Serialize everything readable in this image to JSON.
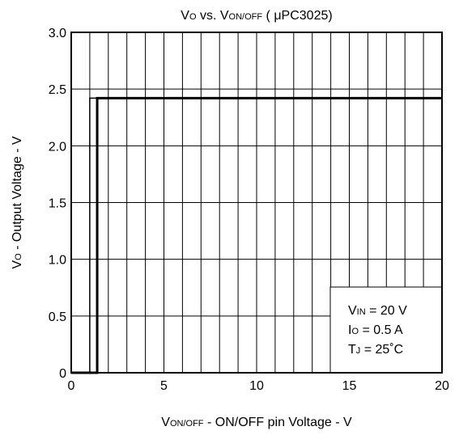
{
  "chart_data": {
    "type": "line",
    "title": [
      {
        "text": "V"
      },
      {
        "text": "O",
        "sub": true
      },
      {
        "text": " vs. V"
      },
      {
        "text": "ON/OFF",
        "sub": true
      },
      {
        "text": " ( μPC3025)"
      }
    ],
    "x_label": [
      {
        "text": "V"
      },
      {
        "text": "ON/OFF",
        "sub": true
      },
      {
        "text": " - ON/OFF pin Voltage - V"
      }
    ],
    "y_label": [
      {
        "text": "V"
      },
      {
        "text": "O",
        "sub": true
      },
      {
        "text": " - Output Voltage - V"
      }
    ],
    "annotation": [
      [
        {
          "text": "V"
        },
        {
          "text": "IN",
          "sub": true
        },
        {
          "text": " = 20 V"
        }
      ],
      [
        {
          "text": "I"
        },
        {
          "text": "O",
          "sub": true
        },
        {
          "text": " = 0.5 A"
        }
      ],
      [
        {
          "text": "T"
        },
        {
          "text": "J",
          "sub": true
        },
        {
          "text": " = 25˚C"
        }
      ]
    ],
    "xlim": [
      0,
      20
    ],
    "ylim": [
      0,
      3.0
    ],
    "xticks": [
      0,
      5,
      10,
      15,
      20
    ],
    "xgrid": [
      0,
      1,
      2,
      3,
      4,
      5,
      6,
      7,
      8,
      9,
      10,
      11,
      12,
      13,
      14,
      15,
      16,
      17,
      18,
      19,
      20
    ],
    "yticks": [
      0,
      0.5,
      {
        "value": 1.0,
        "label": "1.0"
      },
      1.5,
      {
        "value": 2.0,
        "label": "2.0"
      },
      2.5,
      {
        "value": 3.0,
        "label": "3.0"
      }
    ],
    "grid": true,
    "series": [
      {
        "color": "#000000",
        "linewidth": 1.5,
        "x": [
          0,
          1.0,
          1.0,
          20
        ],
        "values": [
          0,
          0,
          2.42,
          2.42
        ]
      },
      {
        "color": "#000000",
        "linewidth": 3,
        "x": [
          0,
          1.4,
          1.4,
          20
        ],
        "values": [
          0,
          0,
          2.42,
          2.42
        ]
      }
    ]
  }
}
